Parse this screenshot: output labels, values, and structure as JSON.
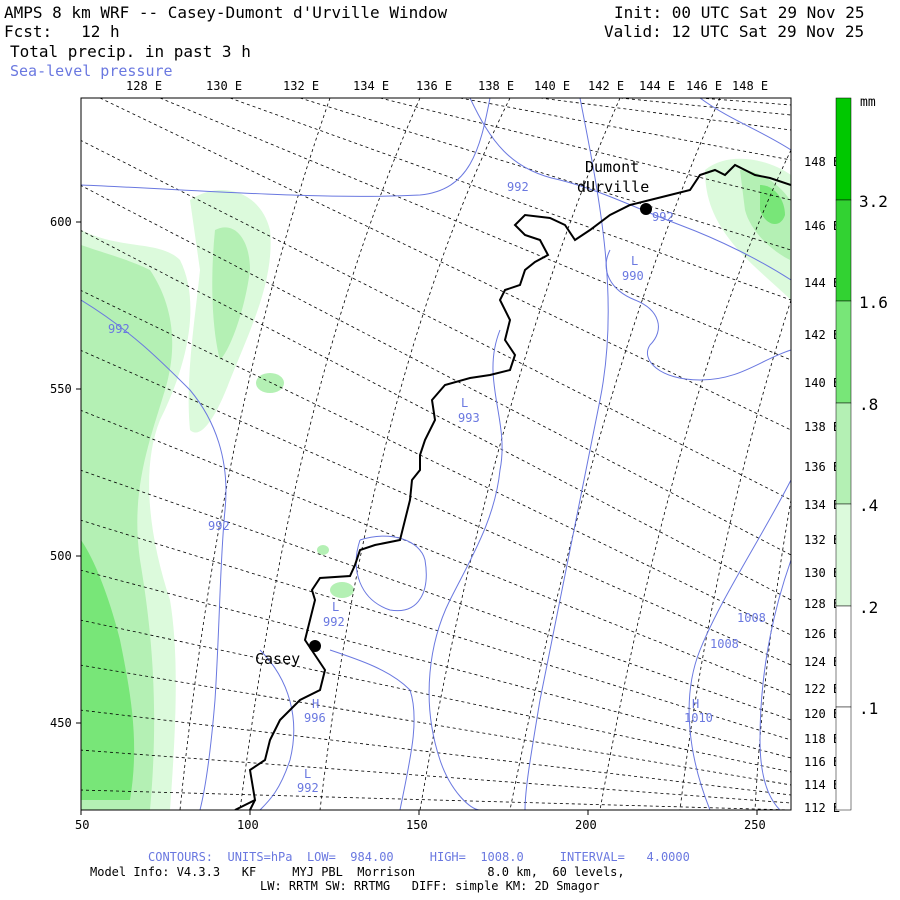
{
  "header": {
    "title": "AMPS 8 km WRF -- Casey-Dumont d'Urville Window",
    "fcst": "Fcst:   12 h",
    "field": "Total precip. in past 3 h",
    "overlay": "Sea-level pressure",
    "init": "Init: 00 UTC Sat 29 Nov 25",
    "valid": "Valid: 12 UTC Sat 29 Nov 25"
  },
  "axes": {
    "top_lon_labels": [
      "128 E",
      "130 E",
      "132 E",
      "134 E",
      "136 E",
      "138 E",
      "140 E",
      "142 E",
      "144 E",
      "146 E",
      "148 E"
    ],
    "right_lon_labels": [
      "148 E",
      "146 E",
      "144 E",
      "142 E",
      "140 E",
      "138 E",
      "136 E",
      "134 E",
      "132 E",
      "130 E",
      "128 E",
      "126 E",
      "124 E",
      "122 E",
      "120 E",
      "118 E",
      "116 E",
      "114 E",
      "112 E"
    ],
    "x_ticks": [
      "50",
      "100",
      "150",
      "200",
      "250"
    ],
    "y_ticks": [
      "600",
      "550",
      "500",
      "450"
    ]
  },
  "colorbar": {
    "unit": "mm",
    "labels": [
      "3.2",
      "1.6",
      ".8",
      ".4",
      ".2",
      ".1"
    ],
    "colors": [
      "#00c800",
      "#32d232",
      "#78e678",
      "#b4f0b4",
      "#dcfadc",
      "#ffffff"
    ]
  },
  "stations": [
    {
      "name_line1": "Dumont",
      "name_line2": "dUrville"
    },
    {
      "name_line1": "Casey",
      "name_line2": ""
    }
  ],
  "pressure_labels": [
    "992",
    "992",
    "992",
    "990",
    "993",
    "992",
    "996",
    "992",
    "1008",
    "1008",
    "1010"
  ],
  "pressure_markers": [
    "L",
    "L",
    "L",
    "H",
    "L",
    "H"
  ],
  "footer": {
    "contours": "CONTOURS:  UNITS=hPa  LOW=  984.00     HIGH=  1008.0     INTERVAL=   4.0000",
    "model_info": "Model Info: V4.3.3   KF     MYJ PBL  Morrison          8.0 km,  60 levels,",
    "physics": "LW: RRTM SW: RRTMG   DIFF: simple KM: 2D Smagor"
  },
  "colors": {
    "contour": "#6a78e0",
    "coast": "#000000",
    "grid": "#000000"
  }
}
